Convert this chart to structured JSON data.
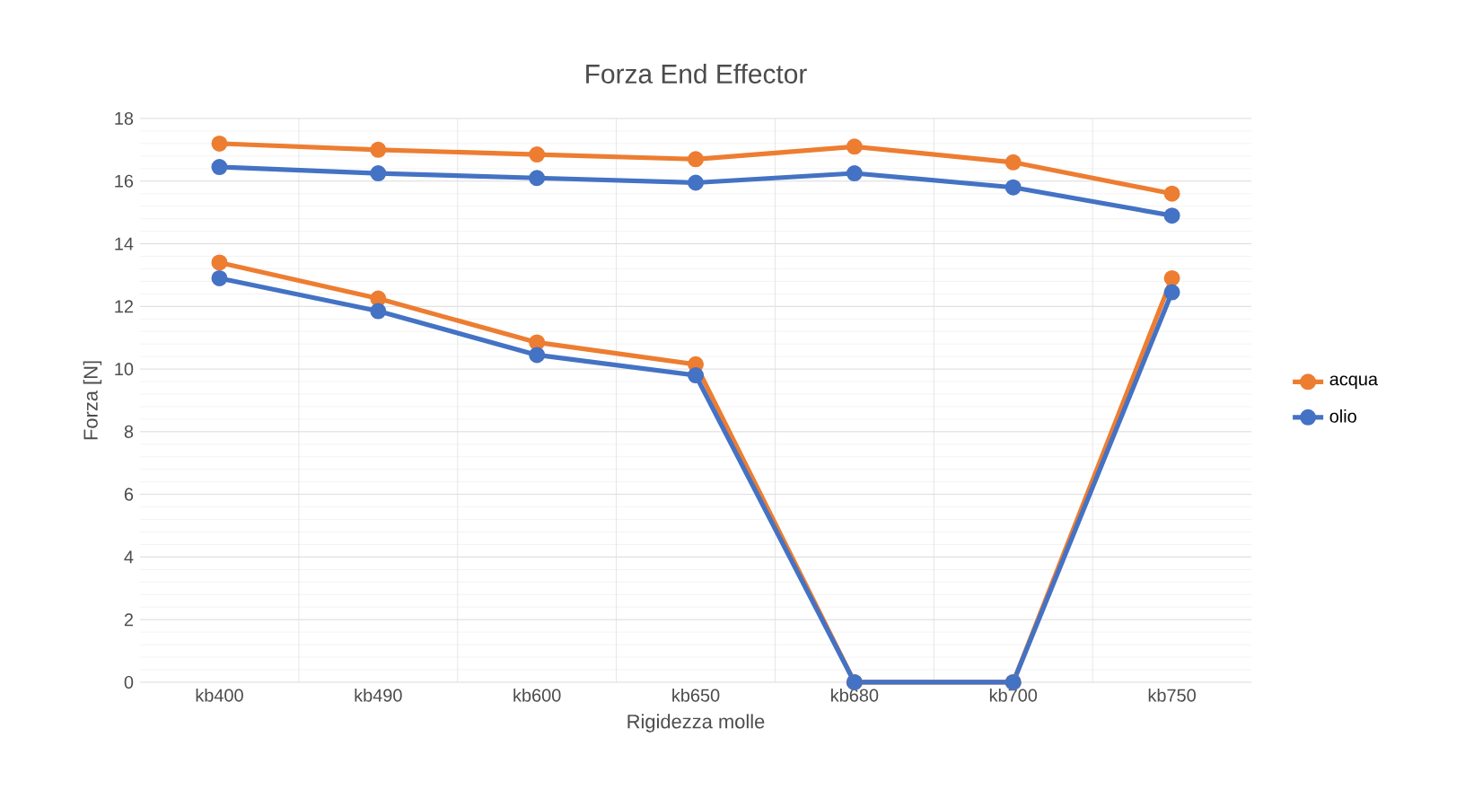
{
  "chart_data": {
    "type": "line",
    "title": "Forza End Effector",
    "xlabel": "Rigidezza molle",
    "ylabel": "Forza [N]",
    "categories": [
      "kb400",
      "kb490",
      "kb600",
      "kb650",
      "kb680",
      "kb700",
      "kb750"
    ],
    "series": [
      {
        "name": "acqua",
        "color": "#ed7d31",
        "values": [
          17.2,
          17.0,
          16.85,
          16.7,
          17.1,
          16.6,
          15.6
        ]
      },
      {
        "name": "olio",
        "color": "#4472c4",
        "values": [
          16.45,
          16.25,
          16.1,
          15.95,
          16.25,
          15.8,
          14.9
        ]
      },
      {
        "color": "#ed7d31",
        "values": [
          13.4,
          12.25,
          10.85,
          10.15,
          0,
          0,
          12.9
        ]
      },
      {
        "color": "#4472c4",
        "values": [
          12.9,
          11.85,
          10.45,
          9.8,
          0,
          0,
          12.45
        ]
      }
    ],
    "ylim": [
      0,
      18
    ],
    "yticks": [
      0,
      2,
      4,
      6,
      8,
      10,
      12,
      14,
      16,
      18
    ],
    "grid": true,
    "legend": "right",
    "marker": "circle",
    "line_style": "solid"
  }
}
